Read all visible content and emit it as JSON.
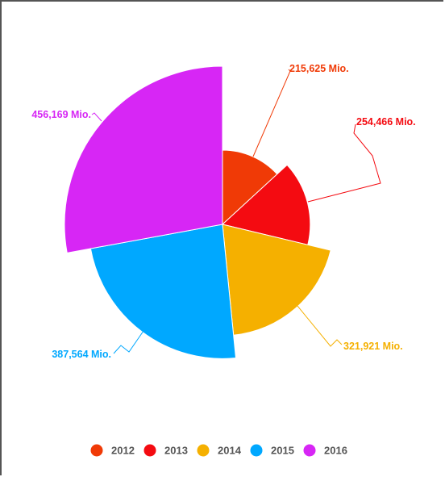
{
  "chart_data": {
    "type": "pie",
    "variant": "variable-radius",
    "categories": [
      "2012",
      "2013",
      "2014",
      "2015",
      "2016"
    ],
    "values": [
      215625,
      254466,
      321921,
      387564,
      456169
    ],
    "data_labels": [
      "215,625 Mio.",
      "254,466 Mio.",
      "321,921 Mio.",
      "387,564 Mio.",
      "456,169 Mio."
    ],
    "colors": [
      "#f03a06",
      "#f40b11",
      "#f5b000",
      "#00a8ff",
      "#d726f5"
    ],
    "legend": {
      "position": "bottom",
      "entries": [
        "2012",
        "2013",
        "2014",
        "2015",
        "2016"
      ]
    },
    "title": "",
    "xlabel": "",
    "ylabel": ""
  }
}
